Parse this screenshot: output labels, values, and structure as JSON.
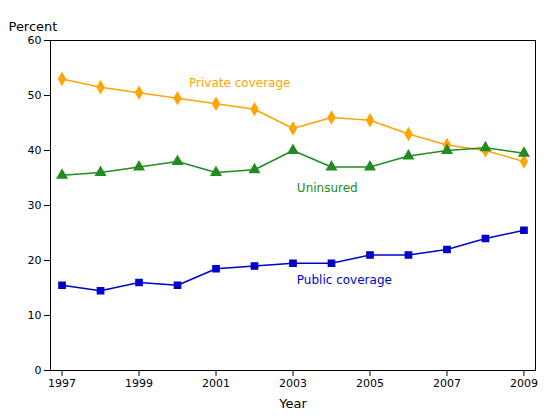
{
  "chart_data": {
    "type": "line",
    "x": [
      1997,
      1998,
      1999,
      2000,
      2001,
      2002,
      2003,
      2004,
      2005,
      2006,
      2007,
      2008,
      2009
    ],
    "series": [
      {
        "name": "Private coverage",
        "color": "#FFA500",
        "marker": "diamond",
        "values": [
          53.0,
          51.5,
          50.5,
          49.5,
          48.5,
          47.5,
          44.0,
          46.0,
          45.5,
          43.0,
          41.0,
          40.0,
          38.0
        ]
      },
      {
        "name": "Uninsured",
        "color": "#228B22",
        "marker": "triangle",
        "values": [
          35.5,
          36.0,
          37.0,
          38.0,
          36.0,
          36.5,
          40.0,
          37.0,
          37.0,
          39.0,
          40.0,
          40.5,
          39.5
        ]
      },
      {
        "name": "Public coverage",
        "color": "#0000CD",
        "marker": "square",
        "values": [
          15.5,
          14.5,
          16.0,
          15.5,
          18.5,
          19.0,
          19.5,
          19.5,
          21.0,
          21.0,
          22.0,
          24.0,
          25.5
        ]
      }
    ],
    "x_label": "Year",
    "y_label": "Percent",
    "xlim": [
      1996.7,
      2009.3
    ],
    "xticks": [
      1997,
      1999,
      2001,
      2003,
      2005,
      2007,
      2009
    ],
    "ylim": [
      0,
      60
    ],
    "yticks": [
      0,
      10,
      20,
      30,
      40,
      50,
      60
    ],
    "grid": false,
    "annotations": [
      {
        "text": "Private coverage",
        "x": 2000.3,
        "y": 51.5,
        "color": "#FFA500"
      },
      {
        "text": "Uninsured",
        "x": 2003.1,
        "y": 32.5,
        "color": "#228B22"
      },
      {
        "text": "Public coverage",
        "x": 2003.1,
        "y": 15.8,
        "color": "#0000CD"
      }
    ]
  }
}
